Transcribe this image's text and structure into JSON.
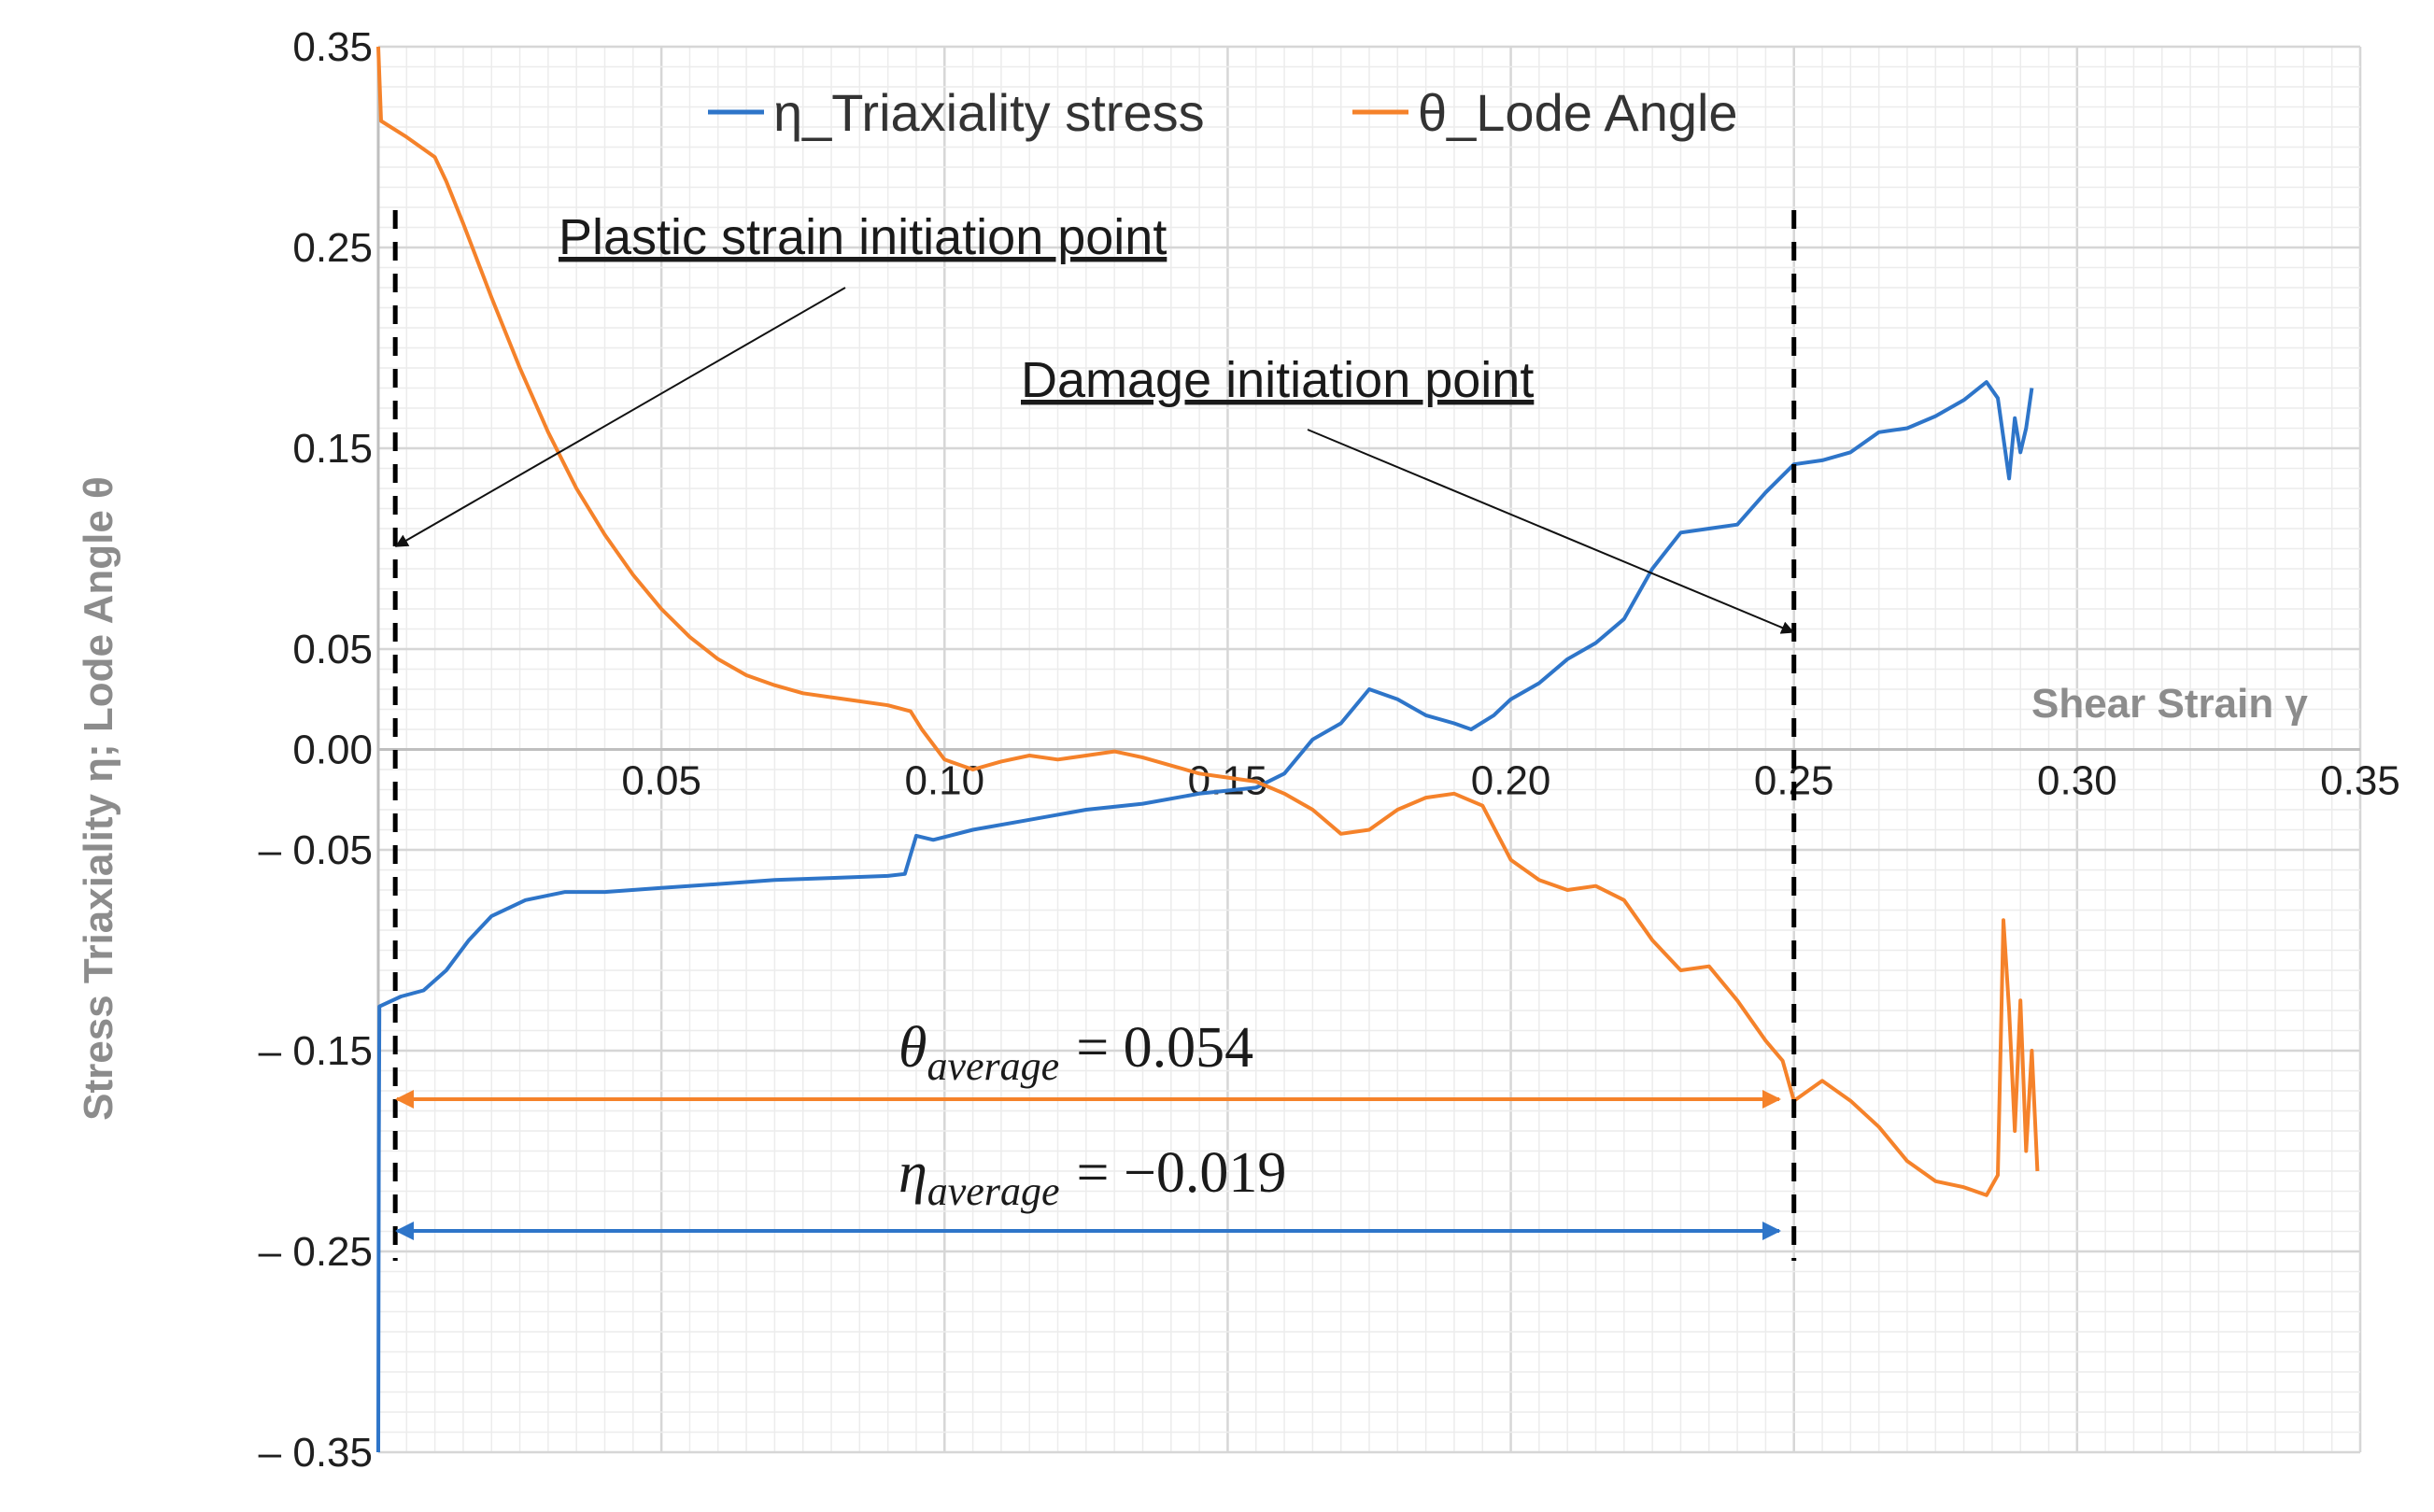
{
  "chart_data": {
    "type": "line",
    "title": "",
    "xlabel": "Shear Strain γ",
    "ylabel": "Stress Triaxiality η; Lode Angle θ",
    "xlim": [
      0,
      0.35
    ],
    "ylim": [
      -0.35,
      0.35
    ],
    "x_ticks": [
      "0.05",
      "0.10",
      "0.15",
      "0.20",
      "0.25",
      "0.30",
      "0.35"
    ],
    "y_ticks": [
      "0.35",
      "0.25",
      "0.15",
      "0.05",
      "0.00",
      "– 0.05",
      "– 0.15",
      "– 0.25",
      "– 0.35"
    ],
    "y_tick_values": [
      0.35,
      0.25,
      0.15,
      0.05,
      0.0,
      -0.05,
      -0.15,
      -0.25,
      -0.35
    ],
    "grid": true,
    "legend": "top-center",
    "series": [
      {
        "name": "η_Triaxiality stress",
        "color": "#2e75c9",
        "points": [
          [
            0,
            -0.35
          ],
          [
            0.0001,
            -0.2
          ],
          [
            0.0002,
            -0.128
          ],
          [
            0.004,
            -0.123
          ],
          [
            0.008,
            -0.12
          ],
          [
            0.012,
            -0.11
          ],
          [
            0.016,
            -0.095
          ],
          [
            0.02,
            -0.083
          ],
          [
            0.026,
            -0.075
          ],
          [
            0.033,
            -0.071
          ],
          [
            0.04,
            -0.071
          ],
          [
            0.05,
            -0.069
          ],
          [
            0.06,
            -0.067
          ],
          [
            0.07,
            -0.065
          ],
          [
            0.08,
            -0.064
          ],
          [
            0.09,
            -0.063
          ],
          [
            0.093,
            -0.062
          ],
          [
            0.095,
            -0.043
          ],
          [
            0.098,
            -0.045
          ],
          [
            0.105,
            -0.04
          ],
          [
            0.115,
            -0.035
          ],
          [
            0.125,
            -0.03
          ],
          [
            0.135,
            -0.027
          ],
          [
            0.145,
            -0.022
          ],
          [
            0.155,
            -0.019
          ],
          [
            0.16,
            -0.012
          ],
          [
            0.165,
            0.005
          ],
          [
            0.17,
            0.013
          ],
          [
            0.175,
            0.03
          ],
          [
            0.18,
            0.025
          ],
          [
            0.185,
            0.017
          ],
          [
            0.19,
            0.013
          ],
          [
            0.193,
            0.01
          ],
          [
            0.197,
            0.017
          ],
          [
            0.2,
            0.025
          ],
          [
            0.205,
            0.033
          ],
          [
            0.21,
            0.045
          ],
          [
            0.215,
            0.053
          ],
          [
            0.22,
            0.065
          ],
          [
            0.225,
            0.09
          ],
          [
            0.23,
            0.108
          ],
          [
            0.235,
            0.11
          ],
          [
            0.24,
            0.112
          ],
          [
            0.245,
            0.128
          ],
          [
            0.25,
            0.142
          ],
          [
            0.255,
            0.144
          ],
          [
            0.26,
            0.148
          ],
          [
            0.265,
            0.158
          ],
          [
            0.27,
            0.16
          ],
          [
            0.275,
            0.166
          ],
          [
            0.28,
            0.174
          ],
          [
            0.284,
            0.183
          ],
          [
            0.286,
            0.175
          ],
          [
            0.288,
            0.135
          ],
          [
            0.289,
            0.165
          ],
          [
            0.29,
            0.148
          ],
          [
            0.291,
            0.16
          ],
          [
            0.292,
            0.18
          ]
        ]
      },
      {
        "name": "θ_Lode Angle",
        "color": "#f5822a",
        "points": [
          [
            0,
            0.35
          ],
          [
            0.0005,
            0.313
          ],
          [
            0.005,
            0.305
          ],
          [
            0.01,
            0.295
          ],
          [
            0.012,
            0.283
          ],
          [
            0.015,
            0.262
          ],
          [
            0.02,
            0.225
          ],
          [
            0.025,
            0.19
          ],
          [
            0.03,
            0.158
          ],
          [
            0.035,
            0.13
          ],
          [
            0.04,
            0.107
          ],
          [
            0.045,
            0.087
          ],
          [
            0.05,
            0.07
          ],
          [
            0.055,
            0.056
          ],
          [
            0.06,
            0.045
          ],
          [
            0.065,
            0.037
          ],
          [
            0.07,
            0.032
          ],
          [
            0.075,
            0.028
          ],
          [
            0.08,
            0.026
          ],
          [
            0.085,
            0.024
          ],
          [
            0.09,
            0.022
          ],
          [
            0.094,
            0.019
          ],
          [
            0.096,
            0.01
          ],
          [
            0.1,
            -0.005
          ],
          [
            0.105,
            -0.01
          ],
          [
            0.11,
            -0.006
          ],
          [
            0.115,
            -0.003
          ],
          [
            0.12,
            -0.005
          ],
          [
            0.125,
            -0.003
          ],
          [
            0.13,
            -0.001
          ],
          [
            0.135,
            -0.004
          ],
          [
            0.14,
            -0.008
          ],
          [
            0.145,
            -0.012
          ],
          [
            0.15,
            -0.014
          ],
          [
            0.155,
            -0.016
          ],
          [
            0.16,
            -0.022
          ],
          [
            0.165,
            -0.03
          ],
          [
            0.17,
            -0.042
          ],
          [
            0.175,
            -0.04
          ],
          [
            0.18,
            -0.03
          ],
          [
            0.185,
            -0.024
          ],
          [
            0.19,
            -0.022
          ],
          [
            0.195,
            -0.028
          ],
          [
            0.2,
            -0.055
          ],
          [
            0.205,
            -0.065
          ],
          [
            0.21,
            -0.07
          ],
          [
            0.215,
            -0.068
          ],
          [
            0.22,
            -0.075
          ],
          [
            0.225,
            -0.095
          ],
          [
            0.23,
            -0.11
          ],
          [
            0.235,
            -0.108
          ],
          [
            0.24,
            -0.125
          ],
          [
            0.245,
            -0.145
          ],
          [
            0.248,
            -0.155
          ],
          [
            0.25,
            -0.175
          ],
          [
            0.255,
            -0.165
          ],
          [
            0.26,
            -0.175
          ],
          [
            0.265,
            -0.188
          ],
          [
            0.27,
            -0.205
          ],
          [
            0.275,
            -0.215
          ],
          [
            0.28,
            -0.218
          ],
          [
            0.284,
            -0.222
          ],
          [
            0.286,
            -0.212
          ],
          [
            0.287,
            -0.085
          ],
          [
            0.288,
            -0.13
          ],
          [
            0.289,
            -0.19
          ],
          [
            0.29,
            -0.125
          ],
          [
            0.291,
            -0.2
          ],
          [
            0.292,
            -0.15
          ],
          [
            0.293,
            -0.21
          ]
        ]
      }
    ],
    "annotations": [
      {
        "text": "Plastic strain initiation point",
        "vline_x": 0.003
      },
      {
        "text": "Damage initiation point",
        "vline_x": 0.25
      }
    ],
    "averages": [
      {
        "symbol": "θ",
        "subscript": "average",
        "value": "= 0.054",
        "color": "#f5822a"
      },
      {
        "symbol": "η",
        "subscript": "average",
        "value": "= −0.019",
        "color": "#2e75c9"
      }
    ]
  }
}
